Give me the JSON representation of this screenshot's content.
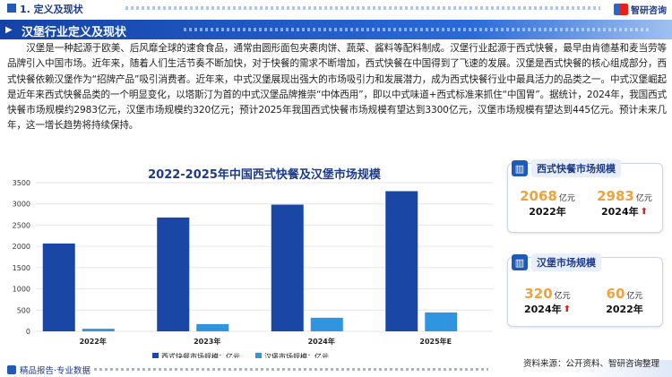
{
  "header": {
    "section_title": "1. 定义及现状",
    "logo_text": "智研咨询"
  },
  "banner": {
    "title": "汉堡行业定义及现状"
  },
  "intro": "汉堡是一种起源于欧美、后风靡全球的速食食品，通常由圆形面包夹裹肉饼、蔬菜、酱料等配料制成。汉堡行业起源于西式快餐，最早由肯德基和麦当劳等品牌引入中国市场。近年来，随着人们生活节奏不断加快，对于快餐的需求不断增加，西式快餐在中国得到了飞速的发展。汉堡是西式快餐的核心组成部分，西式快餐依赖汉堡作为“招牌产品”吸引消费者。近年来，中式汉堡展现出强大的市场吸引力和发展潜力，成为西式快餐行业中最具活力的品类之一。中式汉堡崛起是近年来西式快餐品类的一个明显变化，以塔斯汀为首的中式汉堡品牌推崇“中体西用”，即以中式味道+西式标准来抓住“中国胃”。据统计，2024年，我国西式快餐市场规模约2983亿元，汉堡市场规模约320亿元；预计2025年我国西式快餐市场规模有望达到3300亿元，汉堡市场规模有望达到445亿元。预计未来几年，这一增长趋势将持续保持。",
  "chart_data": {
    "type": "bar",
    "title": "2022-2025年中国西式快餐及汉堡市场规模",
    "categories": [
      "2022年",
      "2023年",
      "2024年",
      "2025年E"
    ],
    "series": [
      {
        "name": "西式快餐市场规模：亿元",
        "color": "#1a47a6",
        "values": [
          2068,
          2680,
          2983,
          3300
        ]
      },
      {
        "name": "汉堡市场规模：亿元",
        "color": "#2f95e0",
        "values": [
          60,
          170,
          320,
          445
        ]
      }
    ],
    "ylim": [
      0,
      3500
    ],
    "yticks": [
      "0",
      "500",
      "1000",
      "1500",
      "2000",
      "2500",
      "3000",
      "3500"
    ],
    "grid": true,
    "legend": "bottom"
  },
  "panels": [
    {
      "title": "西式快餐市场规模",
      "icon": "bar-chart-icon",
      "left": {
        "value": "2068",
        "unit": "亿元",
        "year": "2022年"
      },
      "right": {
        "value": "2983",
        "unit": "亿元",
        "year": "2024年"
      }
    },
    {
      "title": "汉堡市场规模",
      "icon": "bar-chart-icon",
      "left": {
        "value": "320",
        "unit": "亿元",
        "year": "2024年"
      },
      "right": {
        "value": "60",
        "unit": "亿元",
        "year": "2022年"
      }
    }
  ],
  "footer": {
    "left_label": "精品报告·专业数据",
    "source": "资料来源：公开资料、智研咨询整理"
  },
  "colors": {
    "primary": "#1e5bb8",
    "accent": "#f0a23c",
    "up": "#d9261c"
  }
}
